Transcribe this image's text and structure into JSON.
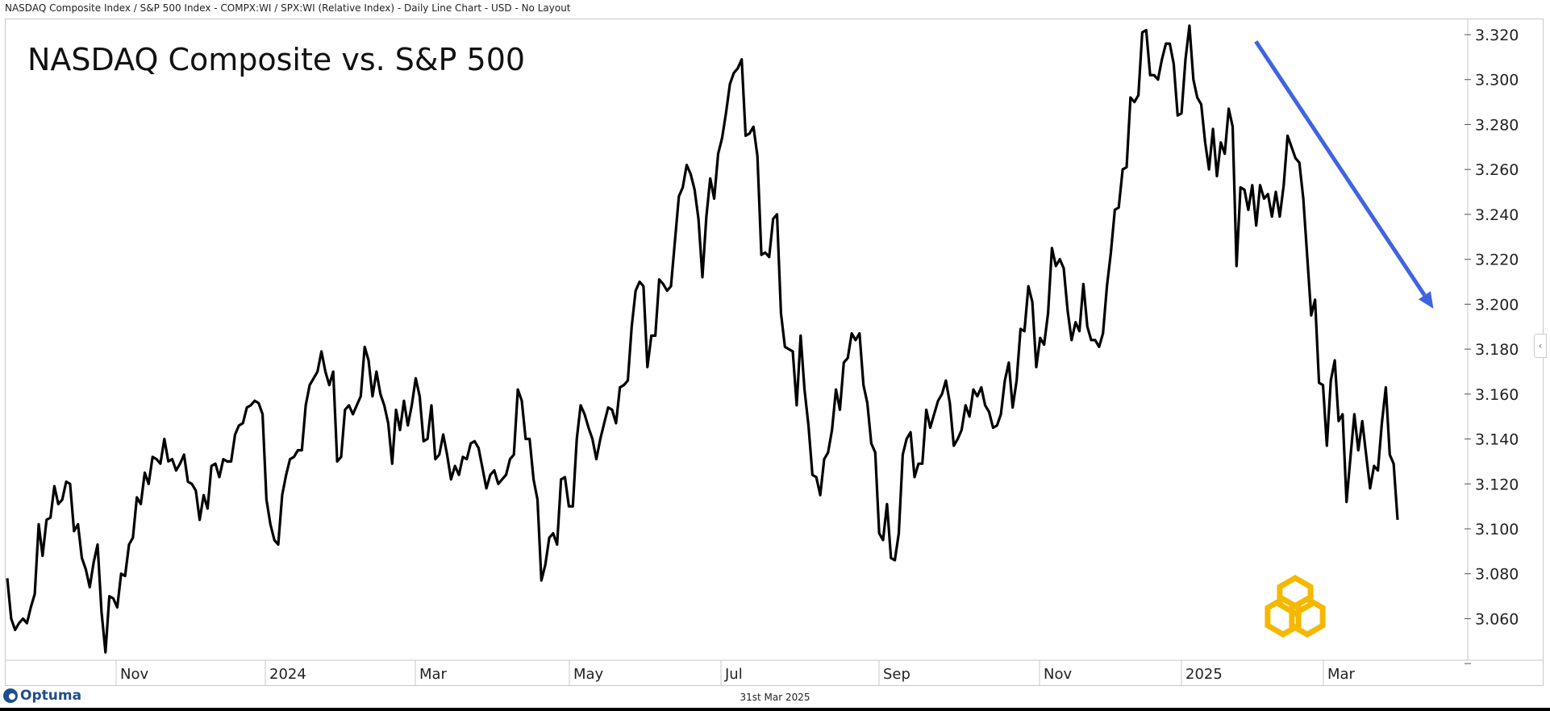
{
  "header": {
    "title": "NASDAQ Composite Index / S&P 500 Index - COMPX:WI / SPX:WI (Relative Index) - Daily Line Chart - USD - No Layout"
  },
  "footer": {
    "brand": "Optuma",
    "date": "31st Mar 2025"
  },
  "colors": {
    "line": "#000000",
    "arrow": "#3f64df",
    "logo": "#f5b800",
    "axis": "#c8c8c8"
  },
  "chart_data": {
    "type": "line",
    "title": "NASDAQ Composite vs. S&P 500",
    "xlabel": "",
    "ylabel": "",
    "ylim": [
      3.039,
      3.3255
    ],
    "xlim": [
      0,
      380
    ],
    "grid": false,
    "y_ticks": [
      "3.040",
      "3.060",
      "3.080",
      "3.100",
      "3.120",
      "3.140",
      "3.160",
      "3.180",
      "3.200",
      "3.220",
      "3.240",
      "3.260",
      "3.280",
      "3.300",
      "3.320"
    ],
    "x_ticks": [
      {
        "label": "Nov",
        "index": 29.7
      },
      {
        "label": "2024",
        "index": 70.5
      },
      {
        "label": "Mar",
        "index": 111.5
      },
      {
        "label": "May",
        "index": 153.5
      },
      {
        "label": "Jul",
        "index": 195
      },
      {
        "label": "Sep",
        "index": 238
      },
      {
        "label": "Nov",
        "index": 282
      },
      {
        "label": "2025",
        "index": 320.7
      },
      {
        "label": "Mar",
        "index": 359.5
      }
    ],
    "x_end_index": 379.7,
    "series": [
      {
        "name": "COMPX:WI / SPX:WI",
        "values": [
          3.078,
          3.06,
          3.055,
          3.058,
          3.06,
          3.058,
          3.065,
          3.071,
          3.102,
          3.088,
          3.104,
          3.105,
          3.119,
          3.111,
          3.113,
          3.121,
          3.12,
          3.099,
          3.102,
          3.087,
          3.082,
          3.074,
          3.085,
          3.093,
          3.063,
          3.045,
          3.07,
          3.069,
          3.065,
          3.08,
          3.079,
          3.093,
          3.096,
          3.114,
          3.111,
          3.125,
          3.12,
          3.132,
          3.131,
          3.129,
          3.14,
          3.13,
          3.131,
          3.126,
          3.129,
          3.133,
          3.121,
          3.12,
          3.117,
          3.104,
          3.115,
          3.109,
          3.128,
          3.129,
          3.123,
          3.131,
          3.13,
          3.13,
          3.142,
          3.146,
          3.147,
          3.154,
          3.155,
          3.157,
          3.156,
          3.151,
          3.113,
          3.102,
          3.095,
          3.093,
          3.115,
          3.124,
          3.131,
          3.132,
          3.135,
          3.135,
          3.155,
          3.164,
          3.167,
          3.17,
          3.179,
          3.17,
          3.164,
          3.17,
          3.13,
          3.132,
          3.153,
          3.155,
          3.151,
          3.155,
          3.159,
          3.181,
          3.175,
          3.159,
          3.17,
          3.16,
          3.155,
          3.147,
          3.129,
          3.153,
          3.144,
          3.157,
          3.146,
          3.155,
          3.167,
          3.159,
          3.139,
          3.14,
          3.155,
          3.131,
          3.133,
          3.142,
          3.133,
          3.122,
          3.128,
          3.124,
          3.132,
          3.131,
          3.138,
          3.139,
          3.136,
          3.127,
          3.118,
          3.124,
          3.126,
          3.12,
          3.122,
          3.124,
          3.131,
          3.133,
          3.162,
          3.157,
          3.14,
          3.14,
          3.122,
          3.113,
          3.077,
          3.084,
          3.096,
          3.098,
          3.093,
          3.122,
          3.123,
          3.11,
          3.11,
          3.14,
          3.155,
          3.151,
          3.145,
          3.14,
          3.131,
          3.14,
          3.147,
          3.154,
          3.153,
          3.147,
          3.163,
          3.164,
          3.166,
          3.19,
          3.206,
          3.21,
          3.208,
          3.172,
          3.186,
          3.186,
          3.211,
          3.209,
          3.206,
          3.208,
          3.228,
          3.248,
          3.252,
          3.262,
          3.258,
          3.251,
          3.238,
          3.212,
          3.239,
          3.256,
          3.247,
          3.267,
          3.274,
          3.285,
          3.298,
          3.303,
          3.305,
          3.309,
          3.275,
          3.276,
          3.279,
          3.266,
          3.222,
          3.223,
          3.221,
          3.238,
          3.24,
          3.196,
          3.181,
          3.18,
          3.179,
          3.155,
          3.186,
          3.162,
          3.146,
          3.124,
          3.123,
          3.115,
          3.131,
          3.134,
          3.144,
          3.162,
          3.153,
          3.174,
          3.176,
          3.187,
          3.184,
          3.187,
          3.164,
          3.156,
          3.138,
          3.134,
          3.098,
          3.095,
          3.111,
          3.087,
          3.086,
          3.098,
          3.133,
          3.14,
          3.143,
          3.123,
          3.129,
          3.129,
          3.153,
          3.145,
          3.151,
          3.157,
          3.16,
          3.166,
          3.156,
          3.137,
          3.14,
          3.144,
          3.155,
          3.15,
          3.162,
          3.159,
          3.163,
          3.155,
          3.152,
          3.145,
          3.146,
          3.151,
          3.166,
          3.174,
          3.154,
          3.166,
          3.189,
          3.188,
          3.208,
          3.201,
          3.172,
          3.185,
          3.182,
          3.196,
          3.225,
          3.217,
          3.22,
          3.216,
          3.197,
          3.184,
          3.192,
          3.188,
          3.209,
          3.19,
          3.184,
          3.184,
          3.181,
          3.187,
          3.208,
          3.223,
          3.242,
          3.243,
          3.26,
          3.261,
          3.292,
          3.29,
          3.293,
          3.321,
          3.322,
          3.302,
          3.302,
          3.3,
          3.309,
          3.316,
          3.316,
          3.307,
          3.284,
          3.285,
          3.309,
          3.324,
          3.3,
          3.292,
          3.289,
          3.272,
          3.26,
          3.278,
          3.257,
          3.272,
          3.267,
          3.287,
          3.279,
          3.217,
          3.252,
          3.251,
          3.242,
          3.253,
          3.235,
          3.253,
          3.247,
          3.249,
          3.239,
          3.25,
          3.239,
          3.253,
          3.275,
          3.27,
          3.265,
          3.263,
          3.247,
          3.221,
          3.195,
          3.202,
          3.165,
          3.164,
          3.137,
          3.166,
          3.175,
          3.148,
          3.151,
          3.112,
          3.132,
          3.151,
          3.135,
          3.148,
          3.133,
          3.118,
          3.128,
          3.126,
          3.147,
          3.163,
          3.133,
          3.129,
          3.104
        ]
      }
    ],
    "annotations": [
      {
        "type": "arrow",
        "from": {
          "index": 341,
          "value": 3.317
        },
        "to": {
          "index": 389.5,
          "value": 3.198
        }
      }
    ]
  }
}
